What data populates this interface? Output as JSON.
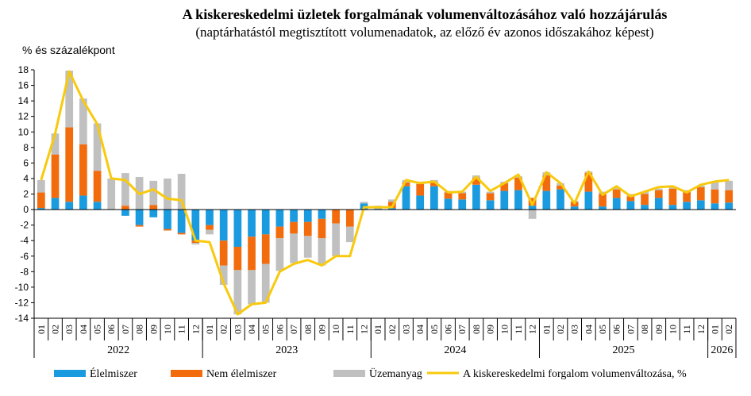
{
  "chart_data": {
    "type": "bar",
    "title": "A kiskereskedelmi üzletek forgalmának volumenváltozásához való hozzájárulás",
    "subtitle": "(naptárhatástól megtisztított volumenadatok, az előző év azonos időszakához képest)",
    "ylabel": "% és százalékpont",
    "ylim": [
      -14,
      18
    ],
    "yticks": [
      -14,
      -12,
      -10,
      -8,
      -6,
      -4,
      -2,
      0,
      2,
      4,
      6,
      8,
      10,
      12,
      14,
      16,
      18
    ],
    "categories": [
      "01",
      "02",
      "03",
      "04",
      "05",
      "06",
      "07",
      "08",
      "09",
      "10",
      "11",
      "12",
      "01",
      "02",
      "03",
      "04",
      "05",
      "06",
      "07",
      "08",
      "09",
      "10",
      "11",
      "12",
      "01",
      "02",
      "03",
      "04",
      "05",
      "06",
      "07",
      "08",
      "09",
      "10",
      "11",
      "12",
      "01",
      "02",
      "03",
      "04",
      "05",
      "06",
      "07",
      "08",
      "09",
      "10",
      "11",
      "12",
      "01",
      "02"
    ],
    "years": [
      {
        "label": "2022",
        "start": 0,
        "count": 12
      },
      {
        "label": "2023",
        "start": 12,
        "count": 12
      },
      {
        "label": "2024",
        "start": 24,
        "count": 12
      },
      {
        "label": "2025",
        "start": 36,
        "count": 12
      },
      {
        "label": "2026",
        "start": 48,
        "count": 2
      }
    ],
    "series": [
      {
        "name": "Élelmiszer",
        "kind": "bar",
        "color": "#1a9be0",
        "values": [
          0.2,
          1.5,
          1.0,
          1.8,
          1.0,
          0,
          -0.8,
          -2.0,
          -1.0,
          -2.5,
          -3.0,
          -4.0,
          -2.0,
          -4.0,
          -4.8,
          -3.5,
          -3.2,
          -2.2,
          -1.6,
          -1.6,
          -1.2,
          0,
          0,
          0.8,
          0.1,
          0.2,
          3.0,
          1.8,
          3.0,
          1.4,
          1.3,
          3.2,
          1.2,
          2.4,
          2.5,
          0.5,
          2.4,
          2.6,
          0.4,
          2.3,
          0.4,
          1.5,
          1.1,
          0.6,
          1.5,
          0.6,
          1.0,
          1.2,
          0.8,
          0.9
        ]
      },
      {
        "name": "Nem élelmiszer",
        "kind": "bar",
        "color": "#f26c0d",
        "values": [
          2.0,
          5.6,
          9.6,
          6.6,
          4.0,
          0,
          0.5,
          -0.2,
          0.6,
          -0.2,
          -0.2,
          -0.3,
          -0.6,
          -3.2,
          -3.0,
          -4.3,
          -3.8,
          -1.5,
          -1.5,
          -1.8,
          -2.5,
          -1.8,
          -2.2,
          0,
          0,
          0.8,
          0.5,
          1.5,
          0.5,
          0.8,
          0.8,
          0.9,
          0.9,
          1.0,
          1.6,
          1.0,
          2.0,
          0.5,
          0.6,
          2.4,
          1.6,
          1.1,
          0.6,
          1.4,
          1.0,
          2.1,
          1.3,
          1.7,
          1.8,
          1.6
        ]
      },
      {
        "name": "Üzemanyag",
        "kind": "bar",
        "color": "#c0c0c0",
        "values": [
          1.6,
          2.7,
          7.3,
          5.9,
          6.1,
          4.0,
          4.2,
          4.2,
          3.1,
          4.0,
          4.6,
          -0.2,
          -0.6,
          -2.5,
          -5.7,
          -4.4,
          -5.0,
          -4.2,
          -3.8,
          -2.8,
          -3.5,
          -4.2,
          -2.0,
          0.2,
          0.4,
          0.3,
          0.3,
          0.3,
          0.3,
          0.2,
          0.2,
          0.3,
          0.2,
          0.2,
          0.2,
          -1.2,
          0.4,
          0.3,
          0.1,
          0.2,
          0.3,
          0.2,
          0.3,
          0.3,
          0.2,
          0.3,
          0.2,
          0.2,
          1.0,
          1.2
        ]
      },
      {
        "name": "A kiskereskedelmi forgalom volumenváltozása, %",
        "kind": "line",
        "color": "#f8c90c",
        "values": [
          3.8,
          9.8,
          17.8,
          14.0,
          11.0,
          4.0,
          3.8,
          2.0,
          2.6,
          1.4,
          1.2,
          -4.0,
          -4.2,
          -9.5,
          -13.5,
          -12.2,
          -12.0,
          -8.0,
          -7.0,
          -6.5,
          -7.2,
          -6.0,
          -6.0,
          0.3,
          0.3,
          0.3,
          3.8,
          3.4,
          3.6,
          2.2,
          2.3,
          4.2,
          2.4,
          3.4,
          4.5,
          0.6,
          4.8,
          3.4,
          0.8,
          4.9,
          1.9,
          3.0,
          1.7,
          2.3,
          2.9,
          3.0,
          2.2,
          3.2,
          3.6,
          3.8
        ]
      }
    ]
  }
}
